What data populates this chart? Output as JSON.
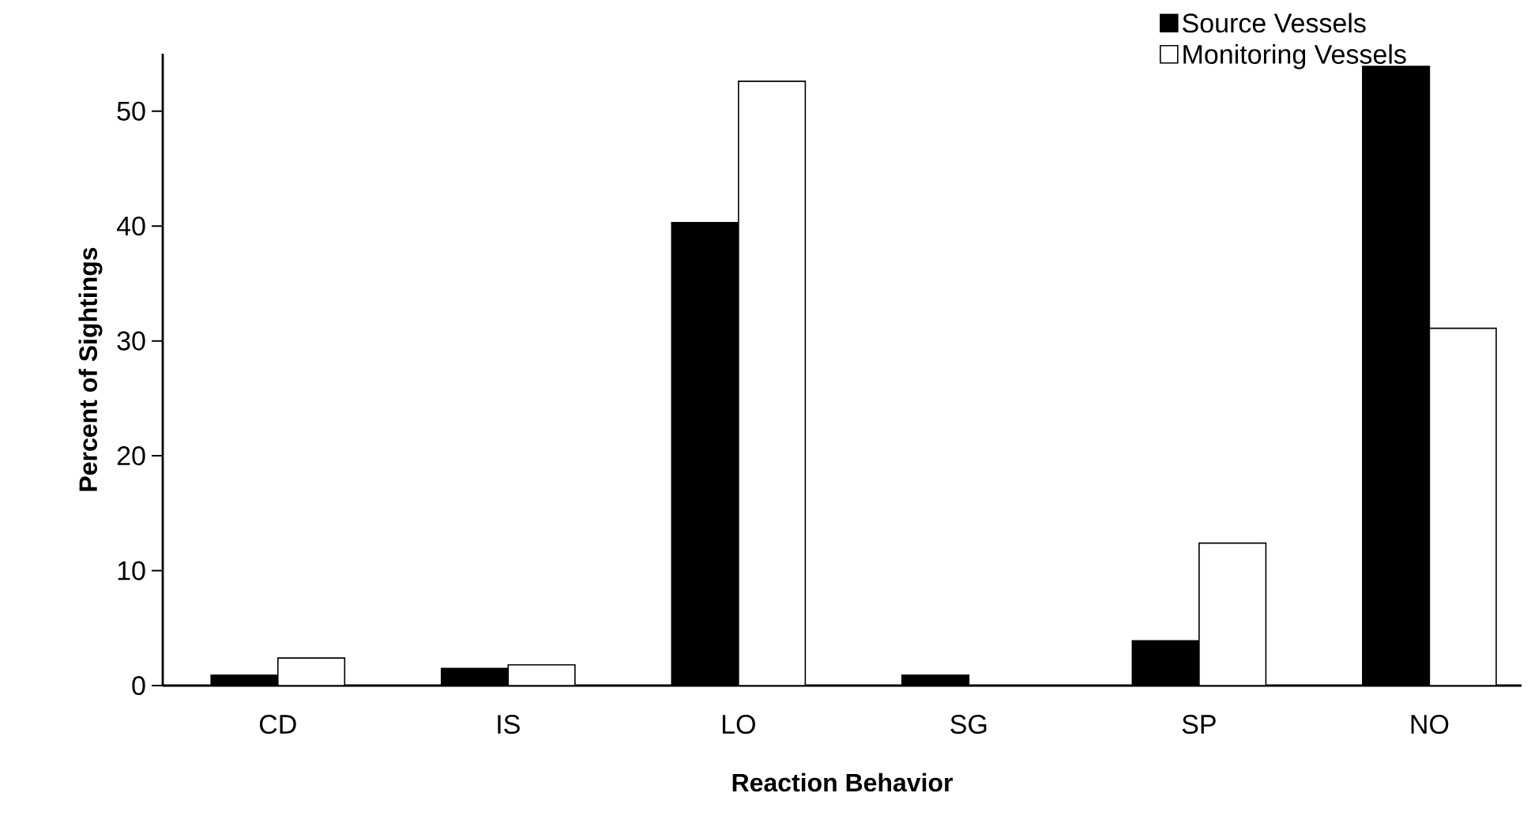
{
  "chart_data": {
    "type": "bar",
    "xlabel": "Reaction Behavior",
    "ylabel": "Percent of Sightings",
    "categories": [
      "CD",
      "IS",
      "LO",
      "SG",
      "SP",
      "NO"
    ],
    "series": [
      {
        "name": "Source Vessels",
        "color": "#000000",
        "values": [
          0.9,
          1.5,
          40.3,
          0.9,
          3.9,
          53.9
        ]
      },
      {
        "name": "Monitoring Vessels",
        "color": "#ffffff",
        "values": [
          2.4,
          1.8,
          52.6,
          null,
          12.4,
          31.1
        ]
      }
    ],
    "ylim": [
      0,
      55
    ],
    "yticks": [
      0,
      10,
      20,
      30,
      40,
      50
    ],
    "legend": "top right"
  }
}
